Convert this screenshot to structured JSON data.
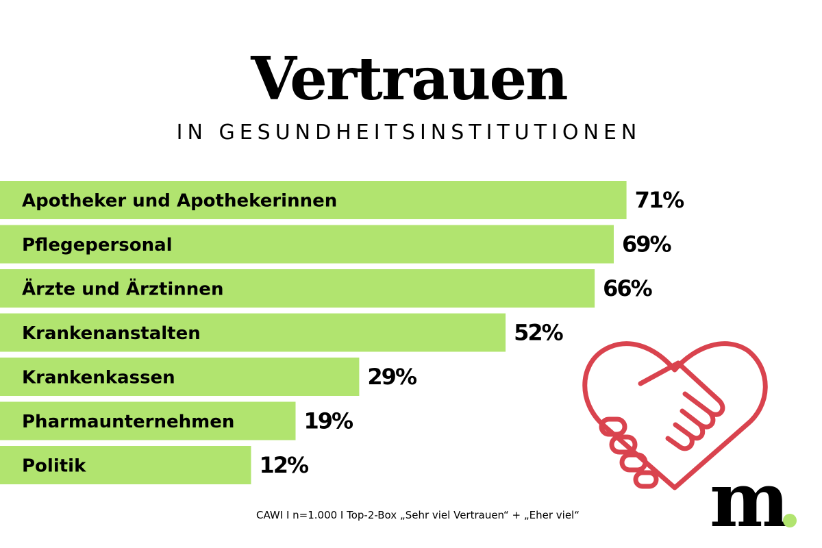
{
  "chart_data": {
    "type": "bar",
    "orientation": "horizontal",
    "title": "Vertrauen",
    "subtitle": "IN GESUNDHEITSINSTITUTIONEN",
    "categories": [
      "Apotheker und Apothekerinnen",
      "Pflegepersonal",
      "Ärzte und Ärztinnen",
      "Krankenanstalten",
      "Krankenkassen",
      "Pharmaunternehmen",
      "Politik"
    ],
    "values": [
      71,
      69,
      66,
      52,
      29,
      19,
      12
    ],
    "value_labels": [
      "71%",
      "69%",
      "66%",
      "52%",
      "29%",
      "19%",
      "12%"
    ],
    "color": "#b1e46f",
    "note": "CAWI I n=1.000  I Top-2-Box „Sehr viel Vertrauen“ + „Eher viel“",
    "logo": "m"
  }
}
